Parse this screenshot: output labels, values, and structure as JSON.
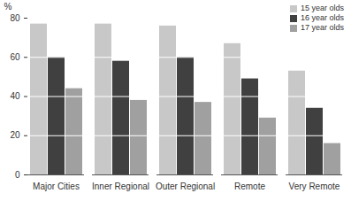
{
  "chart_data": {
    "type": "bar",
    "categories": [
      "Major Cities",
      "Inner Regional",
      "Outer Regional",
      "Remote",
      "Very Remote"
    ],
    "series": [
      {
        "name": "15 year olds",
        "color": "#c8c8c8",
        "values": [
          77,
          77,
          76,
          67,
          53
        ]
      },
      {
        "name": "16 year olds",
        "color": "#404040",
        "values": [
          60,
          58,
          60,
          49,
          34
        ]
      },
      {
        "name": "17 year olds",
        "color": "#a0a0a0",
        "values": [
          44,
          38,
          37,
          29,
          16
        ]
      }
    ],
    "y_label": "%",
    "ylim": [
      0,
      80
    ],
    "yticks": [
      0,
      20,
      40,
      60,
      80
    ],
    "grid": true,
    "legend": "top-right"
  }
}
